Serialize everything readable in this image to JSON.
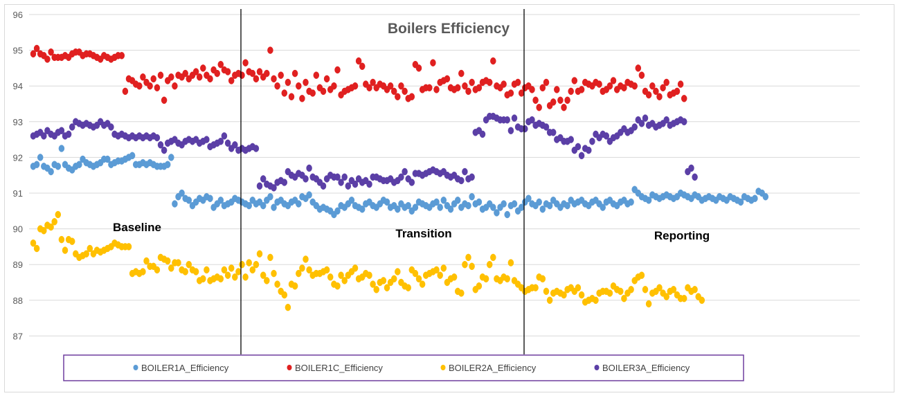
{
  "chart_data": {
    "type": "scatter",
    "title": "Boilers Efficiency",
    "xlabel": "",
    "ylabel": "",
    "ylim": [
      86.5,
      96
    ],
    "yticks": [
      87,
      88,
      89,
      90,
      91,
      92,
      93,
      94,
      95,
      96
    ],
    "x_count": 210,
    "grid": true,
    "legend_position": "bottom",
    "phases": [
      {
        "label": "Baseline",
        "start": 0,
        "end": 58
      },
      {
        "label": "Transition",
        "start": 59,
        "end": 137
      },
      {
        "label": "Reporting",
        "start": 138,
        "end": 209
      }
    ],
    "series": [
      {
        "name": "BOILER1A_Efficiency",
        "color": "#5b9bd5",
        "segments": [
          {
            "start": 0,
            "values": [
              91.75,
              91.8,
              92.0,
              91.75,
              91.7,
              91.6,
              91.8,
              91.75,
              92.25,
              91.8,
              91.7,
              91.65,
              91.75,
              91.8,
              91.95,
              91.85,
              91.8,
              91.75,
              91.8,
              91.85,
              91.95,
              91.95,
              91.8,
              91.85,
              91.9,
              91.9,
              91.95,
              92.0,
              92.05,
              91.8,
              91.8,
              91.85,
              91.8,
              91.85,
              91.8,
              91.75,
              91.75,
              91.75,
              91.8,
              92.0
            ]
          },
          {
            "start": 40,
            "values": [
              90.7,
              90.9,
              91.0,
              90.85,
              90.8,
              90.65,
              90.75,
              90.85,
              90.8,
              90.9,
              90.85,
              90.6,
              90.7,
              90.8,
              90.65,
              90.7,
              90.75,
              90.85,
              90.8,
              90.75,
              90.7,
              90.65,
              90.8,
              90.7,
              90.75,
              90.65,
              90.8,
              90.9,
              90.6,
              90.75,
              90.8,
              90.7,
              90.65,
              90.75,
              90.8
            ]
          },
          {
            "start": 75,
            "values": [
              90.7,
              90.9,
              90.85,
              90.95,
              90.75,
              90.65,
              90.55,
              90.6,
              90.55,
              90.5,
              90.4,
              90.5,
              90.65,
              90.6,
              90.7,
              90.8,
              90.65,
              90.6,
              90.55,
              90.7,
              90.75,
              90.65,
              90.6,
              90.7,
              90.8,
              90.75,
              90.6,
              90.65,
              90.55,
              90.7,
              90.6,
              90.65,
              90.5,
              90.6,
              90.75,
              90.7,
              90.65,
              90.6,
              90.7,
              90.75,
              90.6,
              90.8,
              90.65,
              90.55,
              90.7,
              90.8,
              90.6,
              90.7,
              90.65,
              90.9,
              90.7,
              90.75,
              90.55,
              90.6,
              90.7,
              90.6,
              90.45,
              90.6,
              90.7,
              90.4,
              90.65,
              90.7,
              90.5,
              90.6,
              90.75,
              90.85,
              90.7,
              90.65,
              90.75,
              90.55,
              90.7,
              90.65,
              90.8,
              90.7,
              90.6,
              90.7,
              90.65,
              90.8,
              90.7,
              90.75,
              90.8,
              90.7,
              90.65,
              90.75,
              90.8,
              90.7,
              90.6,
              90.75,
              90.8,
              90.7,
              90.65,
              90.75,
              90.8,
              90.7,
              90.75,
              91.1,
              91.0,
              90.9,
              90.85,
              90.8,
              90.95,
              90.9,
              90.85,
              90.9,
              90.95,
              90.9,
              90.85,
              90.9,
              91.0,
              90.95,
              90.9,
              90.85,
              90.95,
              90.9,
              90.8,
              90.85,
              90.9,
              90.85,
              90.8,
              90.9,
              90.85,
              90.8,
              90.9,
              90.85,
              90.8,
              90.75,
              90.9,
              90.85,
              90.8,
              90.85,
              91.05,
              91.0,
              90.9
            ]
          }
        ]
      },
      {
        "name": "BOILER1C_Efficiency",
        "color": "#e02020",
        "segments": [
          {
            "start": 0,
            "values": [
              94.9,
              95.05,
              94.9,
              94.85,
              94.75,
              94.95,
              94.8,
              94.8,
              94.8,
              94.85,
              94.8,
              94.9,
              94.95,
              94.95,
              94.85,
              94.9,
              94.9,
              94.85,
              94.8,
              94.75,
              94.85,
              94.8,
              94.75,
              94.8,
              94.85,
              94.85,
              93.85,
              94.2,
              94.15
            ]
          },
          {
            "start": 29,
            "values": [
              94.05,
              94.0,
              94.25,
              94.1,
              94.0,
              94.2,
              93.95,
              94.3,
              93.6,
              94.15,
              94.25,
              94.0,
              94.3,
              94.25,
              94.35,
              94.2,
              94.3,
              94.4,
              94.25,
              94.5,
              94.3,
              94.2,
              94.45,
              94.35,
              94.6,
              94.45,
              94.4,
              94.15,
              94.3,
              94.35
            ]
          },
          {
            "start": 59,
            "values": [
              94.3,
              94.65,
              94.4,
              94.35,
              94.2,
              94.4,
              94.25,
              94.35,
              95.0,
              94.2,
              94.0,
              94.3,
              93.8,
              94.1,
              93.7,
              94.35,
              94.0,
              93.65,
              94.1,
              93.85,
              93.8,
              94.3,
              93.95,
              93.85,
              94.2,
              93.9,
              94.0,
              94.45,
              93.75,
              93.85,
              93.9,
              93.95,
              94.0,
              94.7,
              94.55,
              94.05,
              93.95,
              94.1,
              93.95,
              94.05,
              94.0,
              93.9,
              94.0,
              93.85,
              93.7,
              94.0,
              93.85,
              93.65,
              93.7,
              94.6,
              94.5,
              93.9,
              93.95,
              93.95,
              94.65,
              93.9,
              94.1,
              94.15,
              94.2,
              93.95,
              93.9,
              93.95,
              94.35,
              94.0,
              93.85,
              94.1,
              93.9,
              93.95,
              94.1,
              94.15,
              94.1,
              94.7,
              94.0,
              93.95,
              94.05,
              93.75,
              93.8,
              94.05,
              94.1,
              93.8,
              93.95,
              94.0,
              93.9,
              93.6,
              93.4,
              93.95,
              94.1,
              93.45,
              93.55,
              93.9,
              93.6,
              93.4,
              93.6,
              93.85,
              94.15,
              93.85,
              93.9,
              94.1,
              94.05,
              94.0,
              94.1,
              94.05,
              93.85,
              93.9,
              94.0,
              94.15,
              93.9,
              94.0,
              93.95,
              94.1,
              94.05,
              94.0,
              94.5,
              94.3,
              93.85,
              93.75,
              94.0,
              93.85,
              93.7,
              93.95,
              94.1,
              93.75,
              93.8,
              93.85,
              94.05,
              93.65
            ]
          }
        ]
      },
      {
        "name": "BOILER2A_Efficiency",
        "color": "#ffc000",
        "segments": [
          {
            "start": 0,
            "values": [
              89.6,
              89.45,
              90.0,
              89.95,
              90.1,
              90.05,
              90.2,
              90.4,
              89.7,
              89.4,
              89.7,
              89.65,
              89.3,
              89.2,
              89.25,
              89.3,
              89.45,
              89.3,
              89.4,
              89.35,
              89.4,
              89.45,
              89.5,
              89.6,
              89.55,
              89.5,
              89.5,
              89.5,
              88.75,
              88.8
            ]
          },
          {
            "start": 30,
            "values": [
              88.75,
              88.8,
              89.1,
              88.95,
              88.95,
              88.85,
              89.2,
              89.15,
              89.1,
              88.9,
              89.05,
              89.05,
              88.85,
              88.8,
              89.0,
              88.85,
              88.8,
              88.55,
              88.6,
              88.85,
              88.55,
              88.6,
              88.65,
              88.6,
              88.85,
              88.7,
              88.9,
              88.65,
              88.8,
              89.0,
              88.65
            ]
          },
          {
            "start": 61,
            "values": [
              89.05,
              88.85,
              89.0,
              89.3,
              88.7,
              88.55,
              89.2,
              88.75,
              88.45,
              88.25,
              88.15,
              87.8,
              88.45,
              88.4,
              88.75,
              88.9,
              89.15,
              88.85,
              88.7,
              88.75,
              88.75,
              88.8,
              88.85,
              88.65,
              88.45,
              88.4,
              88.7,
              88.55,
              88.7,
              88.8,
              88.9,
              88.6,
              88.65,
              88.75,
              88.7,
              88.45,
              88.3,
              88.5,
              88.55,
              88.35,
              88.5,
              88.6,
              88.8,
              88.5,
              88.4,
              88.35,
              88.85,
              88.75,
              88.6,
              88.45,
              88.7,
              88.75,
              88.8,
              88.85,
              88.7,
              88.9,
              88.5,
              88.6,
              88.65,
              88.25,
              88.2,
              89.0,
              89.2,
              88.95,
              88.3,
              88.4,
              88.65,
              88.6,
              89.0,
              89.2,
              88.6,
              88.55,
              88.65,
              88.6,
              89.05,
              88.55,
              88.45,
              88.35,
              88.25,
              88.3,
              88.35,
              88.35,
              88.65,
              88.6,
              88.25,
              88.0,
              88.2,
              88.25,
              88.2,
              88.15,
              88.3,
              88.35,
              88.25,
              88.35,
              88.15,
              87.95,
              88.0,
              88.05,
              88.0,
              88.2,
              88.25,
              88.25,
              88.2,
              88.4,
              88.3,
              88.25,
              88.05,
              88.2,
              88.3,
              88.55,
              88.65,
              88.7,
              88.3,
              87.9,
              88.2,
              88.25,
              88.35,
              88.2,
              88.1,
              88.25,
              88.3,
              88.15,
              88.05,
              88.05,
              88.35,
              88.25,
              88.3,
              88.1,
              88.0
            ]
          }
        ]
      },
      {
        "name": "BOILER3A_Efficiency",
        "color": "#5b3fa6",
        "segments": [
          {
            "start": 0,
            "values": [
              92.6,
              92.65,
              92.7,
              92.6,
              92.75,
              92.65,
              92.6,
              92.7,
              92.75,
              92.6,
              92.65,
              92.85,
              93.0,
              92.95,
              92.9,
              92.95,
              92.9,
              92.85,
              92.9,
              93.0,
              92.9,
              92.95,
              92.85,
              92.65,
              92.6,
              92.65,
              92.6,
              92.55,
              92.6,
              92.55,
              92.6,
              92.55,
              92.6,
              92.55,
              92.6,
              92.55
            ]
          },
          {
            "start": 36,
            "values": [
              92.35,
              92.2,
              92.4,
              92.45,
              92.5,
              92.4,
              92.35,
              92.45,
              92.5,
              92.45,
              92.5,
              92.4,
              92.45,
              92.5,
              92.3,
              92.35,
              92.4,
              92.45,
              92.6,
              92.4,
              92.25,
              92.35,
              92.2,
              92.25,
              92.2,
              92.25,
              92.3,
              92.25
            ]
          },
          {
            "start": 64,
            "values": [
              91.2,
              91.4,
              91.25,
              91.2,
              91.15,
              91.3,
              91.35,
              91.3,
              91.6,
              91.5,
              91.45,
              91.55,
              91.5,
              91.4,
              91.7,
              91.45,
              91.4,
              91.3,
              91.2,
              91.4,
              91.5,
              91.45,
              91.45,
              91.3,
              91.45,
              91.2,
              91.35,
              91.25,
              91.4,
              91.3,
              91.35,
              91.25,
              91.45,
              91.45,
              91.4,
              91.35,
              91.35,
              91.4,
              91.3,
              91.35,
              91.45,
              91.6,
              91.4,
              91.3,
              91.55,
              91.55,
              91.5,
              91.55,
              91.6,
              91.65,
              91.6,
              91.55,
              91.6,
              91.5,
              91.45,
              91.5,
              91.4,
              91.35,
              91.6,
              91.4,
              91.45
            ]
          },
          {
            "start": 125,
            "values": [
              92.7,
              92.75,
              92.65,
              93.05,
              93.15,
              93.15,
              93.1,
              93.05,
              93.05,
              93.05,
              92.75,
              93.1,
              92.85,
              92.8,
              92.8,
              93.0,
              93.05,
              92.9,
              92.95,
              92.9,
              92.85,
              92.7,
              92.7,
              92.5,
              92.55,
              92.45,
              92.45,
              92.5,
              92.2,
              92.3,
              92.05,
              92.25,
              92.2,
              92.45,
              92.65,
              92.55,
              92.65,
              92.6,
              92.45,
              92.55,
              92.6,
              92.7,
              92.8,
              92.7,
              92.75,
              92.85,
              93.05,
              92.95,
              93.1,
              92.9,
              92.95,
              92.85,
              92.9,
              92.95,
              93.05,
              92.9,
              92.95,
              93.0,
              93.05,
              93.0,
              91.6,
              91.7,
              91.45
            ]
          }
        ]
      }
    ]
  }
}
